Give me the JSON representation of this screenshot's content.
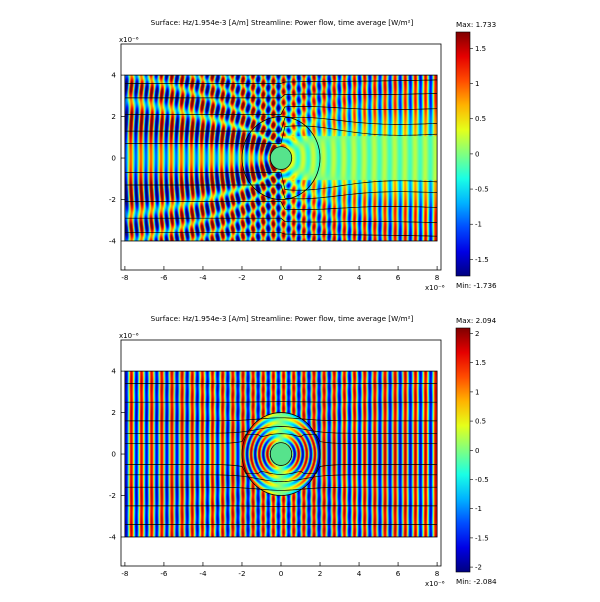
{
  "chart_data": [
    {
      "type": "heatmap",
      "title": "Surface: Hz/1.954e-3 [A/m]    Streamline: Power flow, time average [W/m²]",
      "axis_exponent": "x10⁻⁶",
      "x_ticks": [
        "-8",
        "-6",
        "-4",
        "-2",
        "0",
        "2",
        "4",
        "6",
        "8"
      ],
      "y_ticks": [
        "4",
        "2",
        "0",
        "-2",
        "-4"
      ],
      "xlim": [
        -8.2,
        8.2
      ],
      "ylim": [
        -5.4,
        5.5
      ],
      "domain": {
        "x": [
          -8,
          8
        ],
        "y": [
          -4,
          4
        ]
      },
      "cylinder_radius": 0.55,
      "boundary_radius": 2.0,
      "colorbar": {
        "max_label": "Max: 1.733",
        "min_label": "Min: -1.736",
        "ticks": [
          "1.5",
          "1",
          "0.5",
          "0",
          "-0.5",
          "-1",
          "-1.5"
        ],
        "range": [
          -1.736,
          1.733
        ]
      },
      "streamline_y": [
        -3.6,
        -2.9,
        -2.1,
        -1.3,
        -0.7,
        0.7,
        1.3,
        2.1,
        2.9,
        3.6
      ],
      "cloaked": false
    },
    {
      "type": "heatmap",
      "title": "Surface: Hz/1.954e-3 [A/m]    Streamline: Power flow, time average [W/m²]",
      "axis_exponent": "x10⁻⁶",
      "x_ticks": [
        "-8",
        "-6",
        "-4",
        "-2",
        "0",
        "2",
        "4",
        "6",
        "8"
      ],
      "y_ticks": [
        "4",
        "2",
        "0",
        "-2",
        "-4"
      ],
      "xlim": [
        -8.2,
        8.2
      ],
      "ylim": [
        -5.4,
        5.5
      ],
      "domain": {
        "x": [
          -8,
          8
        ],
        "y": [
          -4,
          4
        ]
      },
      "cylinder_radius": 0.55,
      "boundary_radius": 2.0,
      "colorbar": {
        "max_label": "Max: 2.094",
        "min_label": "Min: -2.084",
        "ticks": [
          "2",
          "1.5",
          "1",
          "0.5",
          "0",
          "-0.5",
          "-1",
          "-1.5",
          "-2"
        ],
        "range": [
          -2.084,
          2.094
        ]
      },
      "streamline_y": [
        -3.4,
        -2.5,
        -1.6,
        -1.0,
        -0.5,
        0.5,
        1.0,
        1.6,
        2.5,
        3.4
      ],
      "cloaked": true
    }
  ]
}
